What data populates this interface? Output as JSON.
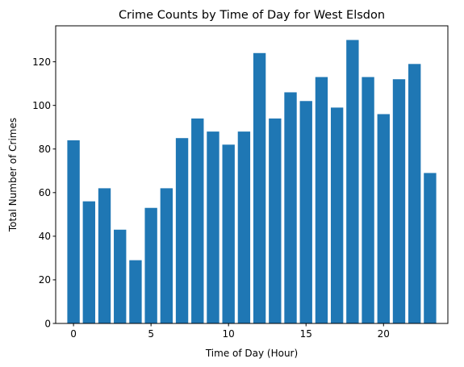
{
  "chart_data": {
    "type": "bar",
    "title": "Crime Counts by Time of Day for West Elsdon",
    "xlabel": "Time of Day (Hour)",
    "ylabel": "Total Number of Crimes",
    "x": [
      0,
      1,
      2,
      3,
      4,
      5,
      6,
      7,
      8,
      9,
      10,
      11,
      12,
      13,
      14,
      15,
      16,
      17,
      18,
      19,
      20,
      21,
      22,
      23
    ],
    "values": [
      84,
      56,
      62,
      43,
      29,
      53,
      62,
      85,
      94,
      88,
      82,
      88,
      124,
      94,
      106,
      102,
      113,
      99,
      130,
      113,
      96,
      112,
      119,
      69
    ],
    "xlim": [
      -1.15,
      24.15
    ],
    "ylim": [
      0,
      136.5
    ],
    "xticks": [
      0,
      5,
      10,
      15,
      20
    ],
    "yticks": [
      0,
      20,
      40,
      60,
      80,
      100,
      120
    ],
    "bar_color": "#1f77b4",
    "grid": false,
    "legend": "none"
  }
}
